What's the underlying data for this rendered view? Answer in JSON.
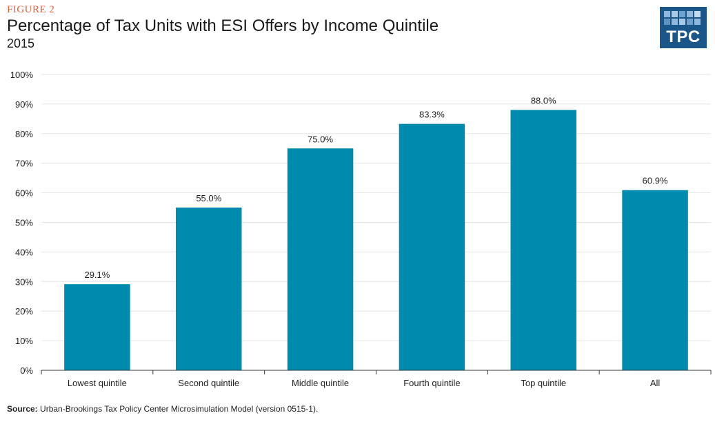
{
  "header": {
    "figure_label": "FIGURE 2",
    "title": "Percentage of Tax Units with ESI Offers by Income Quintile",
    "subtitle": "2015"
  },
  "logo": {
    "text": "TPC",
    "color": "#1b5689"
  },
  "footer": {
    "source_label": "Source:",
    "source_text": "Urban-Brookings Tax Policy Center Microsimulation Model (version 0515-1)."
  },
  "colors": {
    "bar": "#008aae",
    "grid": "#e6e6e6",
    "accent": "#e2603c"
  },
  "chart_data": {
    "type": "bar",
    "title": "Percentage of Tax Units with ESI Offers by Income Quintile",
    "subtitle": "2015",
    "categories": [
      "Lowest quintile",
      "Second quintile",
      "Middle quintile",
      "Fourth quintile",
      "Top quintile",
      "All"
    ],
    "values": [
      29.1,
      55.0,
      75.0,
      83.3,
      88.0,
      60.9
    ],
    "data_labels": [
      "29.1%",
      "55.0%",
      "75.0%",
      "83.3%",
      "88.0%",
      "60.9%"
    ],
    "ylim": [
      0,
      100
    ],
    "yticks": [
      0,
      10,
      20,
      30,
      40,
      50,
      60,
      70,
      80,
      90,
      100
    ],
    "ytick_labels": [
      "0%",
      "10%",
      "20%",
      "30%",
      "40%",
      "50%",
      "60%",
      "70%",
      "80%",
      "90%",
      "100%"
    ],
    "xlabel": "",
    "ylabel": "",
    "grid": true
  }
}
